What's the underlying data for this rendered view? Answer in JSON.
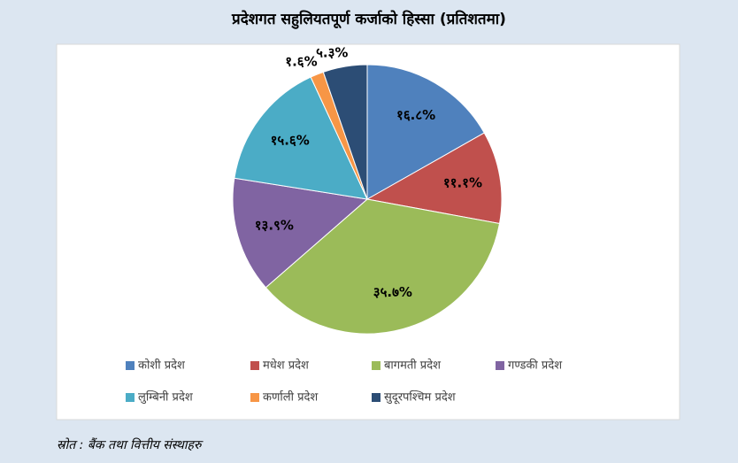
{
  "chart_data": {
    "type": "pie",
    "title": "प्रदेशगत सहुलियतपूर्ण कर्जाको हिस्सा (प्रतिशतमा)",
    "categories": [
      "कोशी प्रदेश",
      "मधेश प्रदेश",
      "बागमती प्रदेश",
      "गण्डकी प्रदेश",
      "लुम्बिनी प्रदेश",
      "कर्णाली प्रदेश",
      "सुदूरपश्चिम प्रदेश"
    ],
    "values": [
      16.8,
      11.1,
      35.7,
      13.9,
      15.6,
      1.6,
      5.3
    ],
    "value_labels": [
      "१६.८%",
      "११.१%",
      "३५.७%",
      "१३.९%",
      "१५.६%",
      "१.६%",
      "५.३%"
    ],
    "colors": [
      "#4f81bd",
      "#c0504d",
      "#9bbb59",
      "#8064a2",
      "#4bacc6",
      "#f79646",
      "#2c4d75"
    ],
    "legend": "bottom",
    "source": "स्रोत : बैंक तथा वित्तीय संस्थाहरु"
  }
}
